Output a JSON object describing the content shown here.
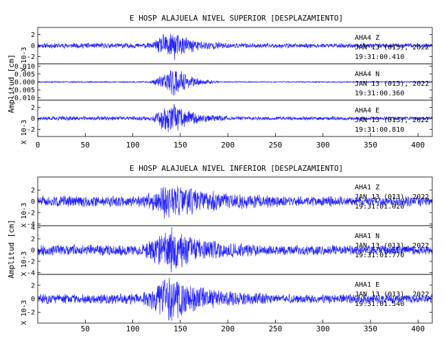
{
  "colors": {
    "trace": "#2020ff",
    "axis": "#000000",
    "background": "#ffffff"
  },
  "chart_data": [
    {
      "type": "line",
      "title": "E HOSP ALAJUELA NIVEL SUPERIOR [DESPLAZAMIENTO]",
      "ylabel": "Amplitud [cm]",
      "xlim": [
        0,
        415
      ],
      "x_ticks": [
        "0",
        "50",
        "100",
        "150",
        "200",
        "250",
        "300",
        "350",
        "400"
      ],
      "channels": [
        {
          "station": "AHA4",
          "component": "Z",
          "date": "JAN 13 (013), 2022",
          "time": "19:31:00.410",
          "scale": "X 10-3",
          "y_ticks": [
            "2",
            "0",
            "-2"
          ],
          "ylim": [
            -3.2,
            3.2
          ],
          "noise": 0.45,
          "peak": 2.9,
          "event_start": 120,
          "event_peak": 140,
          "event_end": 200,
          "seed": 11
        },
        {
          "station": "AHA4",
          "component": "N",
          "date": "JAN 13 (013), 2022",
          "time": "19:31:00.360",
          "scale": "",
          "y_ticks": [
            "0.010",
            "0.005",
            "0.000",
            "-0.005",
            "-0.010"
          ],
          "ylim": [
            -0.011,
            0.011
          ],
          "noise": 0.0004,
          "peak": 0.0095,
          "event_start": 118,
          "event_peak": 145,
          "event_end": 190,
          "seed": 23
        },
        {
          "station": "AHA4",
          "component": "E",
          "date": "JAN 13 (013), 2022",
          "time": "19:31:00.810",
          "scale": "X 10-3",
          "y_ticks": [
            "2",
            "0",
            "-2"
          ],
          "ylim": [
            -3.2,
            3.2
          ],
          "noise": 0.35,
          "peak": 3.0,
          "event_start": 120,
          "event_peak": 140,
          "event_end": 200,
          "seed": 37
        }
      ]
    },
    {
      "type": "line",
      "title": "E HOSP ALAJUELA NIVEL INFERIOR [DESPLAZAMIENTO]",
      "ylabel": "Amplitud [cm]",
      "xlim": [
        0,
        415
      ],
      "x_ticks": [
        "50",
        "100",
        "150",
        "200",
        "250",
        "300",
        "350",
        "400"
      ],
      "channels": [
        {
          "station": "AHA1",
          "component": "Z",
          "date": "JAN 13 (013), 2022",
          "time": "19:31:01.020",
          "scale": "X 10-3",
          "y_ticks": [
            "2",
            "0",
            "-2",
            "-4"
          ],
          "ylim": [
            -4.2,
            4.2
          ],
          "noise": 0.9,
          "peak": 3.3,
          "event_start": 110,
          "event_peak": 140,
          "event_end": 260,
          "seed": 51
        },
        {
          "station": "AHA1",
          "component": "N",
          "date": "JAN 13 (013), 2022",
          "time": "19:31:01.770",
          "scale": "X 10-3",
          "y_ticks": [
            "4",
            "2",
            "0",
            "-2",
            "-4"
          ],
          "ylim": [
            -4.2,
            4.2
          ],
          "noise": 0.9,
          "peak": 3.8,
          "event_start": 110,
          "event_peak": 140,
          "event_end": 230,
          "seed": 67
        },
        {
          "station": "AHA1",
          "component": "E",
          "date": "JAN 13 (013), 2022",
          "time": "19:31:01.540",
          "scale": "X 10-3",
          "y_ticks": [
            "2",
            "0",
            "-2"
          ],
          "ylim": [
            -3.5,
            3.5
          ],
          "noise": 0.7,
          "peak": 3.4,
          "event_start": 110,
          "event_peak": 140,
          "event_end": 240,
          "seed": 83
        }
      ]
    }
  ]
}
